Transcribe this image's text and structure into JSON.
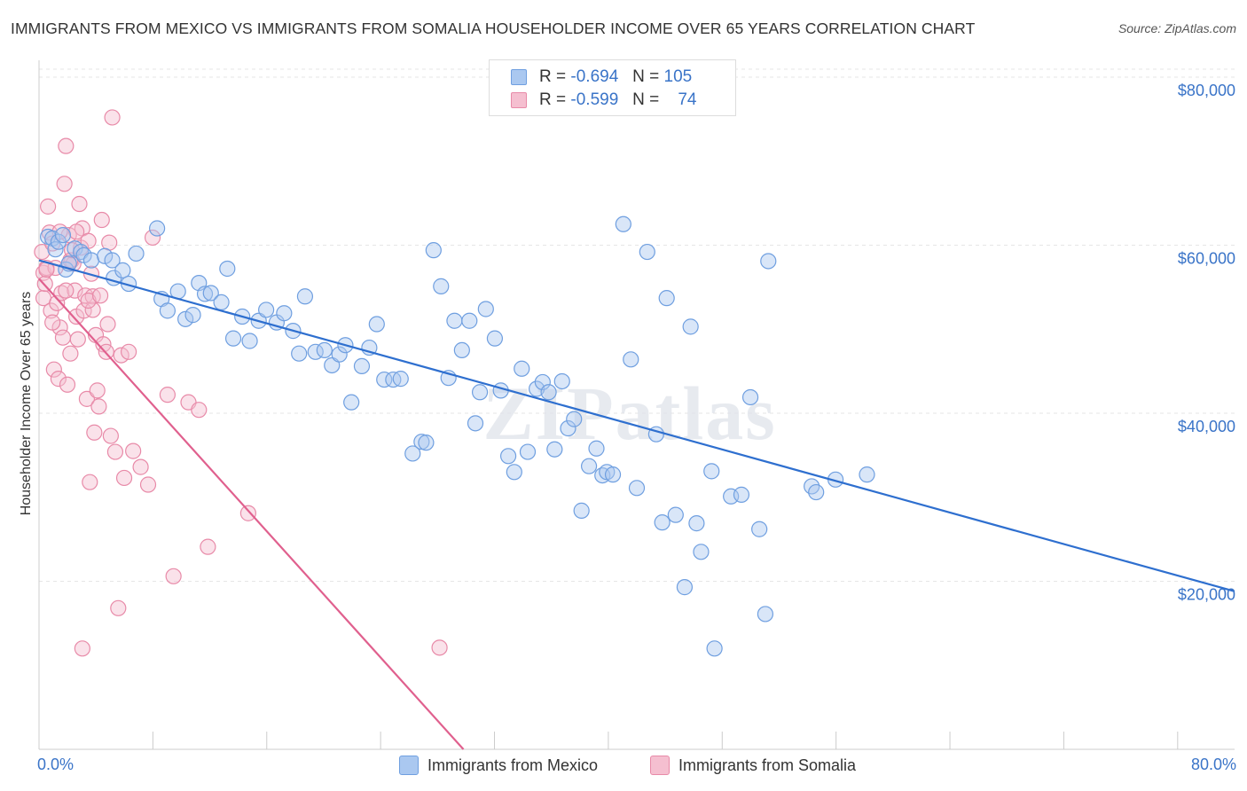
{
  "chart_data": {
    "type": "scatter",
    "title": "IMMIGRANTS FROM MEXICO VS IMMIGRANTS FROM SOMALIA HOUSEHOLDER INCOME OVER 65 YEARS CORRELATION CHART",
    "source": "Source: ZipAtlas.com",
    "xlabel": "",
    "ylabel": "Householder Income Over 65 years",
    "xlim": [
      0,
      80
    ],
    "ylim": [
      0,
      82000
    ],
    "x_tick_labels": [
      "0.0%",
      "80.0%"
    ],
    "y_ticks": [
      {
        "value": 20000,
        "label": "$20,000"
      },
      {
        "value": 40000,
        "label": "$40,000"
      },
      {
        "value": 60000,
        "label": "$60,000"
      },
      {
        "value": 80000,
        "label": "$80,000"
      }
    ],
    "watermark": "ZIPatlas",
    "legend": [
      {
        "r_label": "R =",
        "r_value": "-0.694",
        "n_label": "N =",
        "n_value": "105"
      },
      {
        "r_label": "R =",
        "r_value": "-0.599",
        "n_label": "N =",
        "n_value": "74"
      }
    ],
    "series": [
      {
        "name": "Immigrants from Mexico",
        "color": "#6f9fe0",
        "fill": "#aac8f0",
        "line_color": "#2e6fcf",
        "trend": {
          "x0": 0,
          "y0": 58200,
          "x1": 80,
          "y1": 18800
        },
        "points": [
          [
            0.6,
            61000
          ],
          [
            0.9,
            60800
          ],
          [
            1.1,
            59500
          ],
          [
            1.3,
            60400
          ],
          [
            1.6,
            61200
          ],
          [
            1.8,
            57100
          ],
          [
            2.0,
            57800
          ],
          [
            2.4,
            59600
          ],
          [
            2.8,
            59200
          ],
          [
            3.0,
            58800
          ],
          [
            3.5,
            58200
          ],
          [
            4.4,
            58700
          ],
          [
            4.9,
            58200
          ],
          [
            5.0,
            56100
          ],
          [
            5.6,
            57000
          ],
          [
            6.0,
            55400
          ],
          [
            6.5,
            59000
          ],
          [
            7.9,
            62000
          ],
          [
            8.2,
            53600
          ],
          [
            8.6,
            52200
          ],
          [
            9.3,
            54500
          ],
          [
            9.8,
            51200
          ],
          [
            10.3,
            51700
          ],
          [
            10.7,
            55500
          ],
          [
            11.1,
            54200
          ],
          [
            11.5,
            54300
          ],
          [
            12.2,
            53200
          ],
          [
            12.6,
            57200
          ],
          [
            13.0,
            48900
          ],
          [
            13.6,
            51500
          ],
          [
            14.1,
            48600
          ],
          [
            14.7,
            51000
          ],
          [
            15.2,
            52300
          ],
          [
            15.9,
            50800
          ],
          [
            16.4,
            51900
          ],
          [
            17.0,
            49800
          ],
          [
            17.4,
            47100
          ],
          [
            17.8,
            53900
          ],
          [
            18.5,
            47300
          ],
          [
            19.1,
            47500
          ],
          [
            19.6,
            45700
          ],
          [
            20.1,
            47000
          ],
          [
            20.5,
            48100
          ],
          [
            20.9,
            41300
          ],
          [
            21.6,
            45600
          ],
          [
            22.1,
            47800
          ],
          [
            22.6,
            50600
          ],
          [
            23.1,
            44000
          ],
          [
            23.7,
            44000
          ],
          [
            24.2,
            44100
          ],
          [
            25.0,
            35200
          ],
          [
            25.6,
            36600
          ],
          [
            25.9,
            36500
          ],
          [
            26.4,
            59400
          ],
          [
            26.9,
            55100
          ],
          [
            27.4,
            44200
          ],
          [
            27.8,
            51000
          ],
          [
            28.3,
            47500
          ],
          [
            28.8,
            51000
          ],
          [
            29.2,
            38800
          ],
          [
            29.5,
            42500
          ],
          [
            29.9,
            52400
          ],
          [
            30.5,
            48900
          ],
          [
            30.9,
            42700
          ],
          [
            31.4,
            34900
          ],
          [
            31.8,
            33000
          ],
          [
            32.3,
            45300
          ],
          [
            32.7,
            35400
          ],
          [
            33.3,
            42900
          ],
          [
            33.7,
            43700
          ],
          [
            34.1,
            42500
          ],
          [
            34.5,
            35700
          ],
          [
            35.0,
            43800
          ],
          [
            35.4,
            38200
          ],
          [
            35.8,
            39300
          ],
          [
            36.3,
            28400
          ],
          [
            36.8,
            33700
          ],
          [
            37.3,
            35800
          ],
          [
            37.7,
            32600
          ],
          [
            38.0,
            33000
          ],
          [
            38.4,
            32700
          ],
          [
            39.1,
            62500
          ],
          [
            39.6,
            46400
          ],
          [
            40.0,
            31100
          ],
          [
            40.7,
            59200
          ],
          [
            41.3,
            37500
          ],
          [
            41.7,
            27000
          ],
          [
            42.0,
            53700
          ],
          [
            42.6,
            27900
          ],
          [
            43.2,
            19300
          ],
          [
            43.6,
            50300
          ],
          [
            44.0,
            26900
          ],
          [
            44.3,
            23500
          ],
          [
            45.0,
            33100
          ],
          [
            46.3,
            30100
          ],
          [
            47.0,
            30300
          ],
          [
            47.6,
            41900
          ],
          [
            48.2,
            26200
          ],
          [
            48.6,
            16100
          ],
          [
            48.8,
            58100
          ],
          [
            51.7,
            31300
          ],
          [
            52.0,
            30600
          ],
          [
            53.3,
            32100
          ],
          [
            55.4,
            32700
          ],
          [
            45.2,
            12000
          ]
        ]
      },
      {
        "name": "Immigrants from Somalia",
        "color": "#e88aa8",
        "fill": "#f5bfd0",
        "line_color": "#e0608e",
        "trend": {
          "x0": 0,
          "y0": 56000,
          "x1": 28.4,
          "y1": 0
        },
        "points": [
          [
            0.2,
            59200
          ],
          [
            0.3,
            56700
          ],
          [
            0.3,
            53700
          ],
          [
            0.4,
            55400
          ],
          [
            0.5,
            57300
          ],
          [
            0.6,
            64600
          ],
          [
            0.7,
            61500
          ],
          [
            0.8,
            52200
          ],
          [
            0.9,
            60200
          ],
          [
            1.0,
            45200
          ],
          [
            1.1,
            57300
          ],
          [
            1.2,
            53100
          ],
          [
            1.3,
            44100
          ],
          [
            1.4,
            50200
          ],
          [
            1.5,
            54300
          ],
          [
            1.6,
            49000
          ],
          [
            1.7,
            67300
          ],
          [
            1.8,
            71800
          ],
          [
            1.9,
            43400
          ],
          [
            2.0,
            61200
          ],
          [
            2.1,
            47100
          ],
          [
            2.2,
            58200
          ],
          [
            2.3,
            57800
          ],
          [
            2.4,
            54600
          ],
          [
            2.5,
            51500
          ],
          [
            2.6,
            48800
          ],
          [
            2.7,
            64900
          ],
          [
            2.8,
            59700
          ],
          [
            2.9,
            62000
          ],
          [
            3.0,
            52200
          ],
          [
            3.1,
            54000
          ],
          [
            3.2,
            41700
          ],
          [
            3.3,
            60500
          ],
          [
            3.4,
            31800
          ],
          [
            3.5,
            56600
          ],
          [
            3.6,
            53900
          ],
          [
            3.7,
            37700
          ],
          [
            3.8,
            49300
          ],
          [
            3.9,
            42700
          ],
          [
            4.0,
            40800
          ],
          [
            4.2,
            63000
          ],
          [
            4.3,
            48200
          ],
          [
            4.5,
            47300
          ],
          [
            4.6,
            50600
          ],
          [
            4.7,
            60300
          ],
          [
            4.8,
            37300
          ],
          [
            4.9,
            75200
          ],
          [
            5.1,
            35400
          ],
          [
            5.3,
            16800
          ],
          [
            5.5,
            46900
          ],
          [
            5.7,
            32300
          ],
          [
            6.0,
            47300
          ],
          [
            6.3,
            35500
          ],
          [
            6.8,
            33600
          ],
          [
            7.3,
            31500
          ],
          [
            7.6,
            60900
          ],
          [
            8.6,
            42200
          ],
          [
            9.0,
            20600
          ],
          [
            10.0,
            41300
          ],
          [
            10.7,
            40400
          ],
          [
            11.3,
            24100
          ],
          [
            14.0,
            28100
          ],
          [
            26.8,
            12100
          ],
          [
            2.9,
            12000
          ],
          [
            1.4,
            61600
          ],
          [
            2.1,
            58200
          ],
          [
            3.6,
            52300
          ],
          [
            0.9,
            50800
          ],
          [
            2.5,
            61600
          ],
          [
            3.3,
            53400
          ],
          [
            1.8,
            54600
          ],
          [
            4.1,
            54000
          ],
          [
            2.2,
            59400
          ],
          [
            0.5,
            57100
          ]
        ]
      }
    ]
  },
  "labels": {
    "series_a": "Immigrants from Mexico",
    "series_b": "Immigrants from Somalia"
  }
}
